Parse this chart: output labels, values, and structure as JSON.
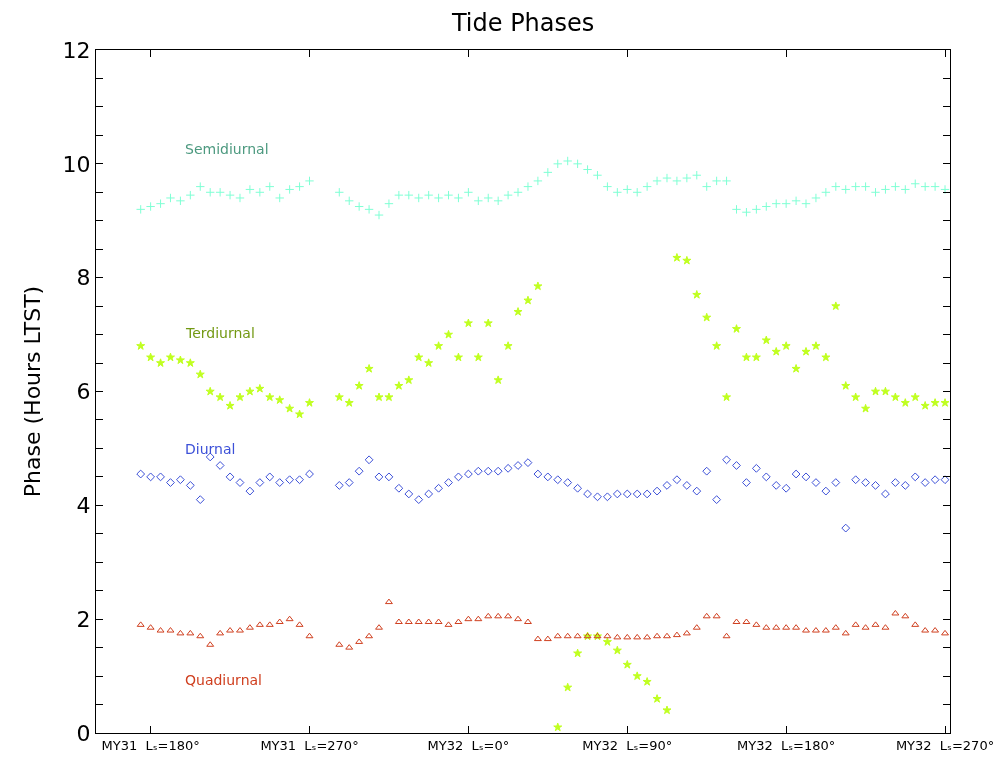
{
  "chart_data": {
    "type": "scatter",
    "title": "Tide Phases",
    "ylabel": "Phase (Hours LTST)",
    "categories": [
      null,
      null,
      null,
      null,
      null,
      "MY31  Lₛ=180°",
      null,
      null,
      null,
      null,
      null,
      null,
      null,
      null,
      null,
      null,
      null,
      null,
      null,
      null,
      null,
      "MY31  Lₛ=270°",
      null,
      null,
      null,
      null,
      null,
      null,
      null,
      null,
      null,
      null,
      null,
      null,
      null,
      null,
      null,
      "MY32  Lₛ=0°",
      null,
      null,
      null,
      null,
      null,
      null,
      null,
      null,
      null,
      null,
      null,
      null,
      null,
      null,
      null,
      "MY32  Lₛ=90°",
      null,
      null,
      null,
      null,
      null,
      null,
      null,
      null,
      null,
      null,
      null,
      null,
      null,
      null,
      null,
      "MY32  Lₛ=180°",
      null,
      null,
      null,
      null,
      null,
      null,
      null,
      null,
      null,
      null,
      null,
      null,
      null,
      null,
      null,
      "MY32  Lₛ=270°"
    ],
    "series": [
      {
        "name": "Semidiurnal",
        "color": "#7fffd4",
        "marker": "cross",
        "values": [
          null,
          null,
          null,
          null,
          9.2,
          9.25,
          9.3,
          9.4,
          9.35,
          9.45,
          9.6,
          9.5,
          9.5,
          9.45,
          9.4,
          9.55,
          9.5,
          9.6,
          9.4,
          9.55,
          9.6,
          9.7,
          null,
          null,
          9.5,
          9.35,
          9.25,
          9.2,
          9.1,
          9.3,
          9.45,
          9.45,
          9.4,
          9.45,
          9.4,
          9.45,
          9.4,
          9.5,
          9.35,
          9.4,
          9.35,
          9.45,
          9.5,
          9.6,
          9.7,
          9.85,
          10.0,
          10.05,
          10.0,
          9.9,
          9.8,
          9.6,
          9.5,
          9.55,
          9.5,
          9.6,
          9.7,
          9.75,
          9.7,
          9.75,
          9.8,
          9.6,
          9.7,
          9.7,
          9.2,
          9.15,
          9.2,
          9.25,
          9.3,
          9.3,
          9.35,
          9.3,
          9.4,
          9.5,
          9.6,
          9.55,
          9.6,
          9.6,
          9.5,
          9.55,
          9.6,
          9.55,
          9.65,
          9.6,
          9.6,
          9.55
        ]
      },
      {
        "name": "Terdiurnal",
        "color": "#c0ff20",
        "marker": "star",
        "values": [
          null,
          null,
          null,
          null,
          6.8,
          6.6,
          6.5,
          6.6,
          6.55,
          6.5,
          6.3,
          6.0,
          5.9,
          5.75,
          5.9,
          6.0,
          6.05,
          5.9,
          5.85,
          5.7,
          5.6,
          5.8,
          null,
          null,
          5.9,
          5.8,
          6.1,
          6.4,
          5.9,
          5.9,
          6.1,
          6.2,
          6.6,
          6.5,
          6.8,
          7.0,
          6.6,
          7.2,
          6.6,
          7.2,
          6.2,
          6.8,
          7.4,
          7.6,
          7.85,
          null,
          0.1,
          0.8,
          1.4,
          1.7,
          1.7,
          1.6,
          1.45,
          1.2,
          1.0,
          0.9,
          0.6,
          0.4,
          8.35,
          8.3,
          7.7,
          7.3,
          6.8,
          5.9,
          7.1,
          6.6,
          6.6,
          6.9,
          6.7,
          6.8,
          6.4,
          6.7,
          6.8,
          6.6,
          7.5,
          6.1,
          5.9,
          5.7,
          6.0,
          6.0,
          5.9,
          5.8,
          5.9,
          5.75,
          5.8,
          5.8
        ]
      },
      {
        "name": "Diurnal",
        "color": "#3c50d8",
        "marker": "diamond",
        "values": [
          null,
          null,
          null,
          null,
          4.55,
          4.5,
          4.5,
          4.4,
          4.45,
          4.35,
          4.1,
          4.85,
          4.7,
          4.5,
          4.4,
          4.25,
          4.4,
          4.5,
          4.4,
          4.45,
          4.45,
          4.55,
          null,
          null,
          4.35,
          4.4,
          4.6,
          4.8,
          4.5,
          4.5,
          4.3,
          4.2,
          4.1,
          4.2,
          4.3,
          4.4,
          4.5,
          4.55,
          4.6,
          4.6,
          4.6,
          4.65,
          4.7,
          4.75,
          4.55,
          4.5,
          4.45,
          4.4,
          4.3,
          4.2,
          4.15,
          4.15,
          4.2,
          4.2,
          4.2,
          4.2,
          4.25,
          4.35,
          4.45,
          4.35,
          4.25,
          4.6,
          4.1,
          4.8,
          4.7,
          4.4,
          4.65,
          4.5,
          4.35,
          4.3,
          4.55,
          4.5,
          4.4,
          4.25,
          4.4,
          3.6,
          4.45,
          4.4,
          4.35,
          4.2,
          4.4,
          4.35,
          4.5,
          4.4,
          4.45,
          4.45
        ]
      },
      {
        "name": "Quadiurnal",
        "color": "#d04020",
        "marker": "triangle",
        "values": [
          null,
          null,
          null,
          null,
          1.9,
          1.85,
          1.8,
          1.8,
          1.75,
          1.75,
          1.7,
          1.55,
          1.75,
          1.8,
          1.8,
          1.85,
          1.9,
          1.9,
          1.95,
          2.0,
          1.9,
          1.7,
          null,
          null,
          1.55,
          1.5,
          1.6,
          1.7,
          1.85,
          2.3,
          1.95,
          1.95,
          1.95,
          1.95,
          1.95,
          1.9,
          1.95,
          2.0,
          2.0,
          2.05,
          2.05,
          2.05,
          2.0,
          1.95,
          1.65,
          1.65,
          1.7,
          1.7,
          1.7,
          1.7,
          1.7,
          1.7,
          1.68,
          1.68,
          1.68,
          1.68,
          1.7,
          1.7,
          1.72,
          1.75,
          1.85,
          2.05,
          2.05,
          1.7,
          1.95,
          1.95,
          1.9,
          1.85,
          1.85,
          1.85,
          1.85,
          1.8,
          1.8,
          1.8,
          1.85,
          1.75,
          1.9,
          1.85,
          1.9,
          1.85,
          2.1,
          2.05,
          1.9,
          1.8,
          1.8,
          1.75
        ]
      }
    ],
    "ylim": [
      0,
      12
    ],
    "yticks": [
      0,
      {
        "value": 0.5,
        "label": null
      },
      {
        "value": 1,
        "label": null
      },
      {
        "value": 1.5,
        "label": null
      },
      2,
      {
        "value": 2.5,
        "label": null
      },
      {
        "value": 3,
        "label": null
      },
      {
        "value": 3.5,
        "label": null
      },
      4,
      {
        "value": 4.5,
        "label": null
      },
      {
        "value": 5,
        "label": null
      },
      {
        "value": 5.5,
        "label": null
      },
      6,
      {
        "value": 6.5,
        "label": null
      },
      {
        "value": 7,
        "label": null
      },
      {
        "value": 7.5,
        "label": null
      },
      8,
      {
        "value": 8.5,
        "label": null
      },
      {
        "value": 9,
        "label": null
      },
      {
        "value": 9.5,
        "label": null
      },
      10,
      {
        "value": 10.5,
        "label": null
      },
      {
        "value": 11,
        "label": null
      },
      {
        "value": 11.5,
        "label": null
      },
      12
    ],
    "legend": false
  }
}
